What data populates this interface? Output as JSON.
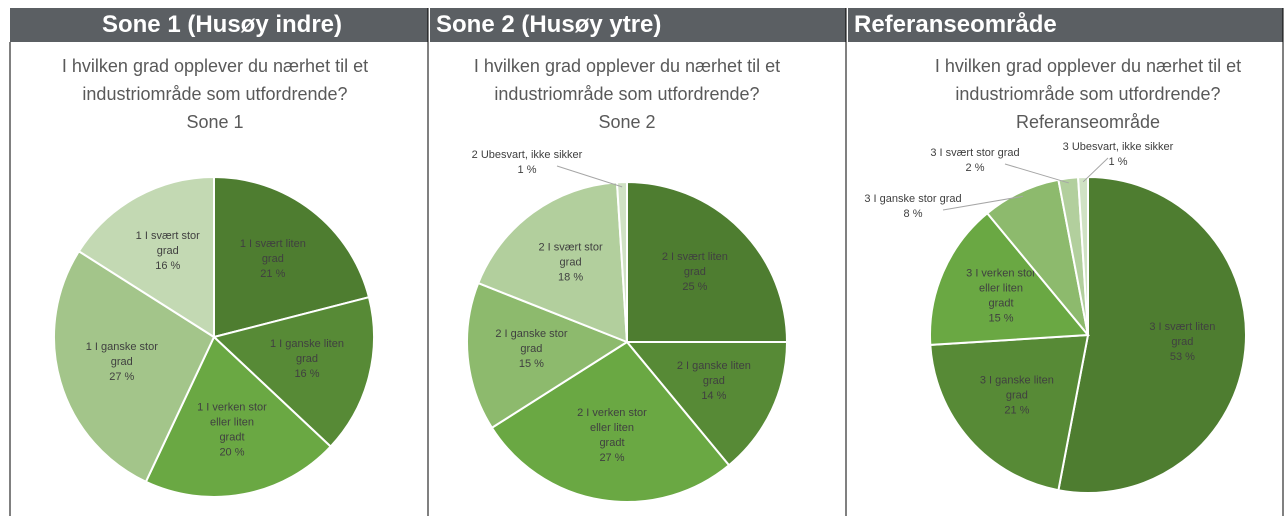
{
  "headers": [
    "Sone 1 (Husøy indre)",
    "Sone 2 (Husøy ytre)",
    "Referanseområde"
  ],
  "chart_data": [
    {
      "type": "pie",
      "title": "I hvilken grad opplever du nærhet til et industriområde som utfordrende?",
      "subtitle": "Sone 1",
      "categories": [
        "1 I svært liten grad",
        "1 I ganske liten grad",
        "1 I verken stor eller liten gradt",
        "1 I ganske stor grad",
        "1 I svært stor grad"
      ],
      "values": [
        21,
        16,
        20,
        27,
        16
      ],
      "value_labels": [
        "21 %",
        "16 %",
        "20 %",
        "27 %",
        "16 %"
      ],
      "colors": [
        "#4e7d30",
        "#578a36",
        "#6aa843",
        "#a3c58a",
        "#c3d9b3"
      ]
    },
    {
      "type": "pie",
      "title": "I hvilken grad opplever du nærhet til et industriområde som utfordrende?",
      "subtitle": "Sone 2",
      "categories": [
        "2 I svært liten grad",
        "2 I ganske liten grad",
        "2 I verken stor eller liten gradt",
        "2 I ganske stor grad",
        "2 I svært stor grad",
        "2 Ubesvart, ikke sikker"
      ],
      "values": [
        25,
        14,
        27,
        15,
        18,
        1
      ],
      "value_labels": [
        "25 %",
        "14 %",
        "27 %",
        "15 %",
        "18 %",
        "1 %"
      ],
      "colors": [
        "#4e7d30",
        "#578a36",
        "#6aa843",
        "#8dba6d",
        "#b2cf9d",
        "#d0e2c4"
      ]
    },
    {
      "type": "pie",
      "title": "I hvilken grad opplever du nærhet til et industriområde som utfordrende?",
      "subtitle": "Referanseområde",
      "categories": [
        "3 I svært liten grad",
        "3 I ganske liten grad",
        "3 I verken stor eller liten gradt",
        "3 I ganske stor grad",
        "3 I svært stor grad",
        "3 Ubesvart, ikke sikker"
      ],
      "values": [
        53,
        21,
        15,
        8,
        2,
        1
      ],
      "value_labels": [
        "53 %",
        "21 %",
        "15 %",
        "8 %",
        "2 %",
        "1 %"
      ],
      "colors": [
        "#4e7d30",
        "#578a36",
        "#6aa843",
        "#8dba6d",
        "#b2cf9d",
        "#d0e2c4"
      ]
    }
  ]
}
